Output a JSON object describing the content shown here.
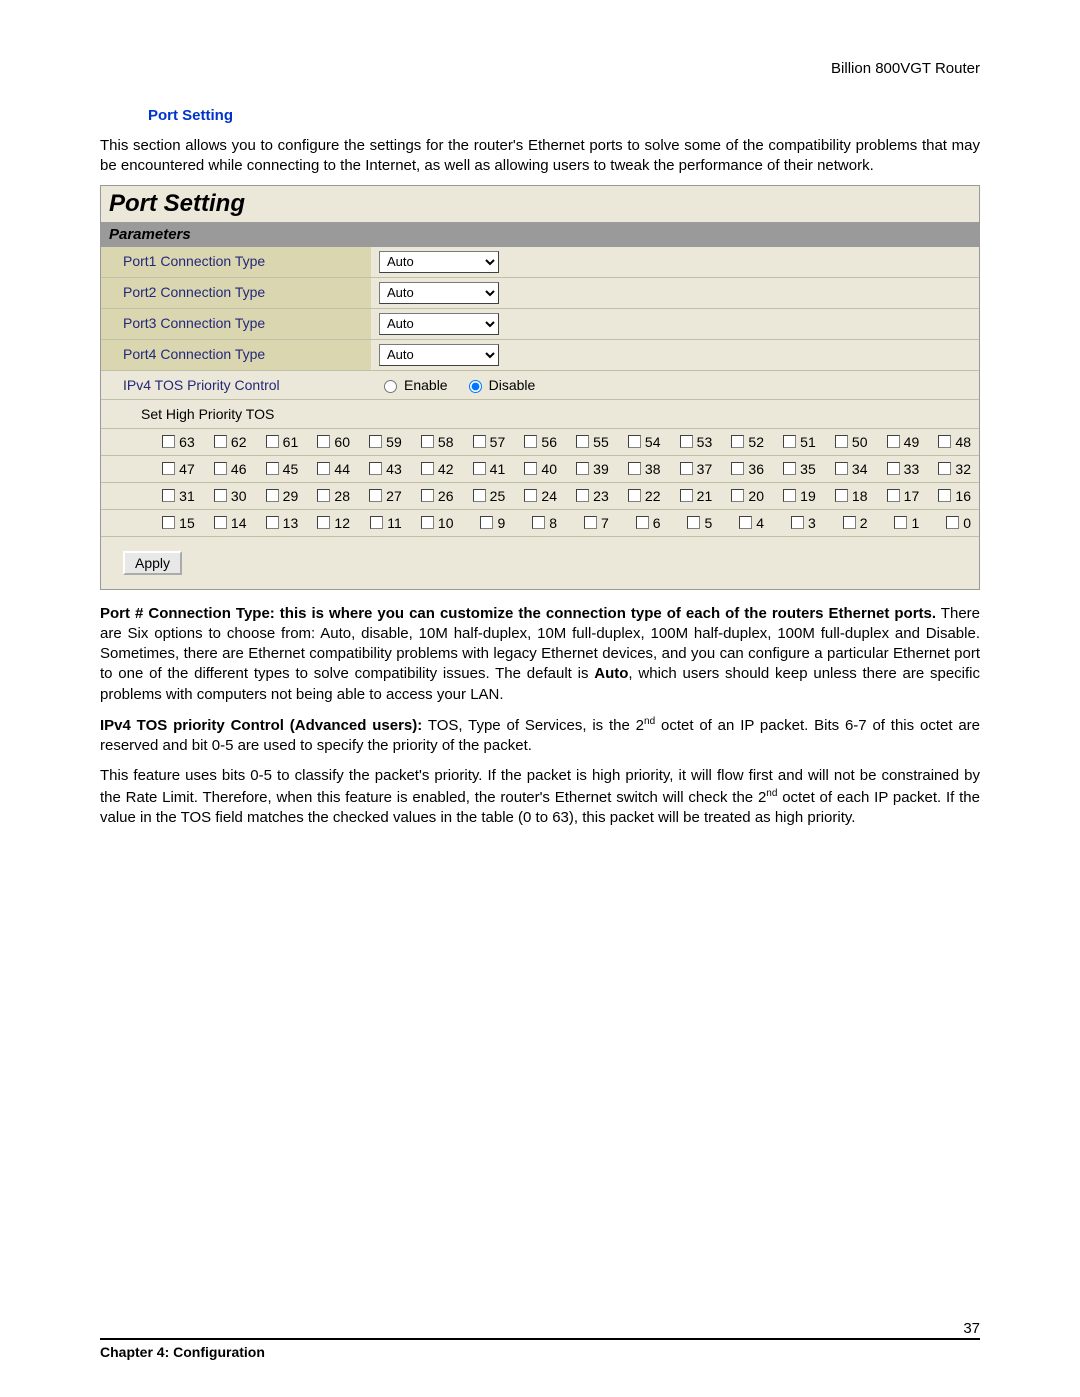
{
  "header": {
    "product": "Billion 800VGT Router"
  },
  "section": {
    "title": "Port Setting",
    "intro": "This section allows you to configure the settings for the router's Ethernet ports to solve some of the compatibility problems that may be encountered while connecting to the Internet, as well as allowing users to tweak the performance of their network."
  },
  "screenshot": {
    "title": "Port Setting",
    "params_label": "Parameters",
    "rows": [
      {
        "label": "Port1 Connection Type",
        "value": "Auto"
      },
      {
        "label": "Port2 Connection Type",
        "value": "Auto"
      },
      {
        "label": "Port3 Connection Type",
        "value": "Auto"
      },
      {
        "label": "Port4 Connection Type",
        "value": "Auto"
      }
    ],
    "tos_control": {
      "label": "IPv4 TOS Priority Control",
      "enable_label": "Enable",
      "disable_label": "Disable",
      "selected": "Disable"
    },
    "tos_header": "Set High Priority TOS",
    "tos_rows": [
      [
        63,
        62,
        61,
        60,
        59,
        58,
        57,
        56,
        55,
        54,
        53,
        52,
        51,
        50,
        49,
        48
      ],
      [
        47,
        46,
        45,
        44,
        43,
        42,
        41,
        40,
        39,
        38,
        37,
        36,
        35,
        34,
        33,
        32
      ],
      [
        31,
        30,
        29,
        28,
        27,
        26,
        25,
        24,
        23,
        22,
        21,
        20,
        19,
        18,
        17,
        16
      ],
      [
        15,
        14,
        13,
        12,
        11,
        10,
        9,
        8,
        7,
        6,
        5,
        4,
        3,
        2,
        1,
        0
      ]
    ],
    "apply_label": "Apply",
    "colors": {
      "panel_bg": "#ebe8d9",
      "label_bg": "#d9d6b0",
      "label_fg": "#24287a",
      "param_hdr_bg": "#9a9a9a"
    }
  },
  "body": {
    "p1_bold": "Port # Connection Type: this is where you can customize the connection type of each of the routers Ethernet ports.",
    "p1_rest_a": " There are Six options to choose from: Auto, disable, 10M half-duplex, 10M full-duplex, 100M half-duplex, 100M full-duplex and Disable. Sometimes, there are Ethernet compatibility problems with legacy Ethernet devices, and you can configure a particular Ethernet port to one of the different types to solve compatibility issues. The default is ",
    "p1_auto": "Auto",
    "p1_rest_b": ", which users should keep unless there are specific problems with computers not being able to access your LAN.",
    "p2_bold": "IPv4 TOS priority Control (Advanced users):",
    "p2_rest": " TOS, Type of Services, is the 2",
    "p2_sup": "nd",
    "p2_tail": " octet of an IP packet. Bits 6-7 of this octet are reserved and bit 0-5 are used to specify the priority of the packet.",
    "p3_a": "This feature uses bits 0-5 to classify the packet's priority. If the packet is high priority, it will flow first and will not be constrained by the Rate Limit.   Therefore, when this feature is enabled, the router's Ethernet switch will check the 2",
    "p3_sup": "nd",
    "p3_b": " octet of each IP packet. If the value in the TOS field matches the checked values in the table (0 to 63), this packet will be treated as high priority."
  },
  "footer": {
    "chapter": "Chapter 4: Configuration",
    "page": "37"
  }
}
